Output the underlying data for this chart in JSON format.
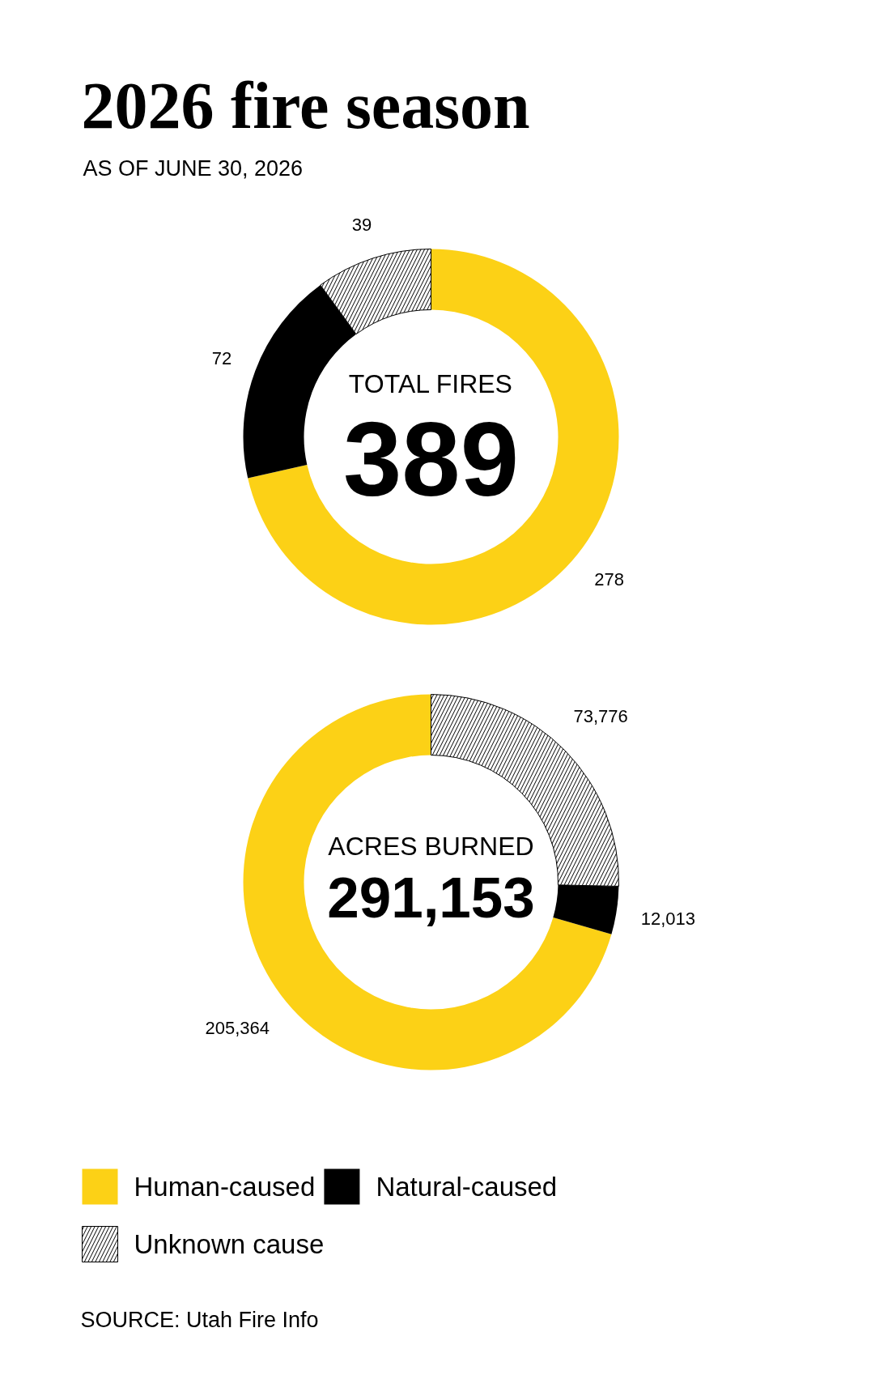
{
  "chart_data": [
    {
      "type": "donut",
      "title": "2026 fire season",
      "subtitle": "AS OF JUNE 30, 2026",
      "categories": [
        null,
        null,
        null
      ],
      "values": [
        278,
        72,
        39
      ],
      "colors": [
        "#fcd116",
        "#000000",
        "#ffffff"
      ],
      "data_labels": true,
      "annotations": [
        "TOTAL FIRES",
        "389"
      ]
    },
    {
      "type": "donut",
      "categories": [
        "Human-caused",
        "Natural-caused",
        "Unknown cause"
      ],
      "values": [
        205364,
        12013,
        73776
      ],
      "value_labels": [
        "205,364",
        "12,013",
        "73,776"
      ],
      "colors": [
        "#fcd116",
        "#000000",
        "#ffffff"
      ],
      "annotations": [
        "ACRES BURNED",
        "291,153",
        "SOURCE: Utah Fire Info"
      ],
      "legend": "bottom"
    }
  ]
}
